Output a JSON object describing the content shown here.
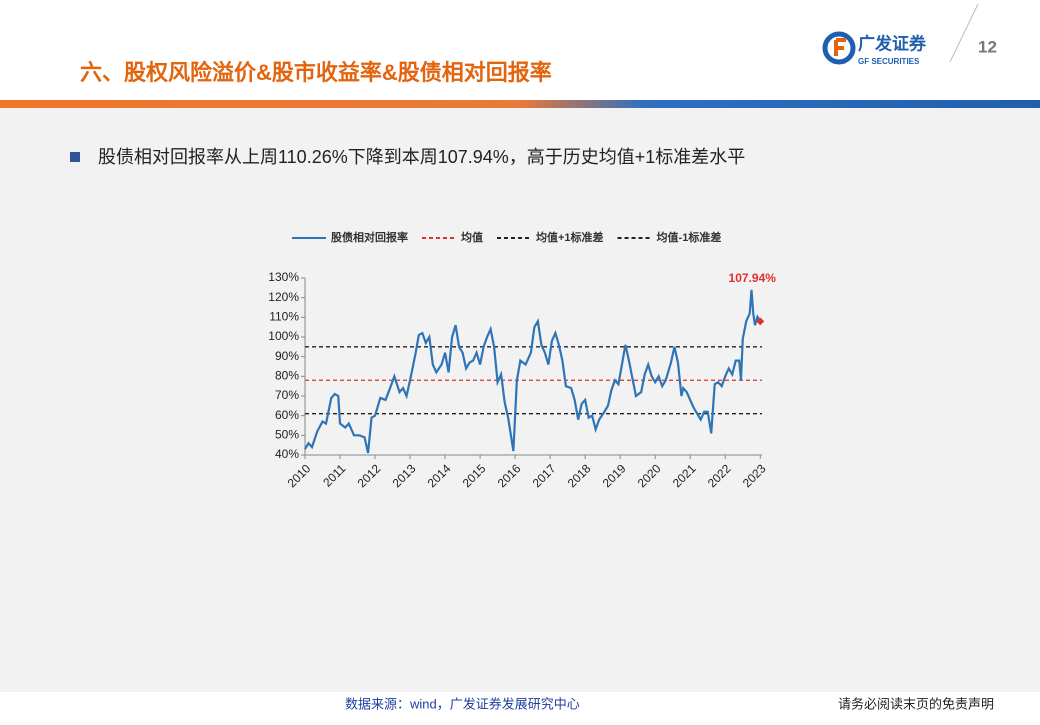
{
  "header": {
    "title": "六、股权风险溢价&股市收益率&股债相对回报率",
    "logo_cn": "广发证券",
    "logo_en": "GF SECURITIES",
    "page_number": "12"
  },
  "bullet": "股债相对回报率从上周110.26%下降到本周107.94%，高于历史均值+1标准差水平",
  "footer": {
    "source": "数据来源：wind，广发证券发展研究中心",
    "disclaimer": "请务必阅读末页的免责声明"
  },
  "chart_data": {
    "type": "line",
    "x": [
      2010.0,
      2010.1,
      2010.2,
      2010.35,
      2010.5,
      2010.6,
      2010.75,
      2010.85,
      2010.95,
      2011.0,
      2011.15,
      2011.25,
      2011.4,
      2011.55,
      2011.7,
      2011.8,
      2011.9,
      2012.0,
      2012.15,
      2012.3,
      2012.45,
      2012.55,
      2012.7,
      2012.8,
      2012.9,
      2013.0,
      2013.15,
      2013.25,
      2013.35,
      2013.45,
      2013.55,
      2013.65,
      2013.75,
      2013.9,
      2014.0,
      2014.1,
      2014.2,
      2014.3,
      2014.4,
      2014.5,
      2014.6,
      2014.7,
      2014.8,
      2014.9,
      2015.0,
      2015.1,
      2015.2,
      2015.3,
      2015.4,
      2015.5,
      2015.6,
      2015.7,
      2015.8,
      2015.95,
      2016.05,
      2016.15,
      2016.3,
      2016.45,
      2016.55,
      2016.65,
      2016.75,
      2016.85,
      2016.95,
      2017.05,
      2017.15,
      2017.25,
      2017.35,
      2017.45,
      2017.6,
      2017.7,
      2017.8,
      2017.9,
      2018.0,
      2018.1,
      2018.2,
      2018.3,
      2018.4,
      2018.55,
      2018.65,
      2018.75,
      2018.85,
      2018.95,
      2019.05,
      2019.15,
      2019.25,
      2019.35,
      2019.45,
      2019.6,
      2019.7,
      2019.8,
      2019.9,
      2020.0,
      2020.1,
      2020.2,
      2020.3,
      2020.45,
      2020.55,
      2020.65,
      2020.75,
      2020.8,
      2020.9,
      2021.0,
      2021.1,
      2021.2,
      2021.3,
      2021.4,
      2021.5,
      2021.6,
      2021.7,
      2021.8,
      2021.9,
      2022.0,
      2022.1,
      2022.2,
      2022.3,
      2022.4,
      2022.45,
      2022.5,
      2022.6,
      2022.7,
      2022.75,
      2022.8,
      2022.85,
      2022.92,
      2023.0
    ],
    "series": [
      {
        "name": "股债相对回报率",
        "color": "#2e75b6",
        "values": [
          43,
          46,
          44,
          52,
          57,
          56,
          69,
          71,
          70,
          56,
          54,
          56,
          50,
          50,
          49,
          41,
          59,
          60,
          69,
          68,
          75,
          80,
          72,
          74,
          70,
          78,
          91,
          101,
          102,
          97,
          100,
          86,
          82,
          86,
          92,
          82,
          100,
          106,
          95,
          92,
          84,
          87,
          88,
          92,
          86,
          95,
          100,
          104,
          95,
          77,
          81,
          67,
          59,
          42,
          78,
          88,
          86,
          92,
          105,
          108,
          96,
          92,
          86,
          98,
          102,
          96,
          88,
          75,
          74,
          68,
          58,
          66,
          68,
          59,
          60,
          53,
          58,
          62,
          65,
          73,
          78,
          76,
          86,
          96,
          88,
          79,
          70,
          72,
          81,
          86,
          80,
          77,
          80,
          75,
          78,
          87,
          95,
          87,
          70,
          74,
          72,
          68,
          64,
          61,
          58,
          62,
          62,
          51,
          76,
          77,
          75,
          80,
          84,
          81,
          88,
          88,
          78,
          99,
          108,
          112,
          124,
          112,
          106,
          110.26,
          107.94
        ]
      }
    ],
    "reference_lines": [
      {
        "name": "均值",
        "color": "#e03030",
        "value": 78
      },
      {
        "name": "均值+1标准差",
        "color": "#222222",
        "value": 95
      },
      {
        "name": "均值-1标准差",
        "color": "#222222",
        "value": 61
      }
    ],
    "annotation": "107.94%",
    "annotation_color": "#e03030",
    "xlim": [
      2010,
      2023.05
    ],
    "xticks": [
      2010,
      2011,
      2012,
      2013,
      2014,
      2015,
      2016,
      2017,
      2018,
      2019,
      2020,
      2021,
      2022,
      2023
    ],
    "ylim": [
      40,
      130
    ],
    "yticks": [
      {
        "value": 40,
        "label": "40%"
      },
      {
        "value": 50,
        "label": "50%"
      },
      {
        "value": 60,
        "label": "60%"
      },
      {
        "value": 70,
        "label": "70%"
      },
      {
        "value": 80,
        "label": "80%"
      },
      {
        "value": 90,
        "label": "90%"
      },
      {
        "value": 100,
        "label": "100%"
      },
      {
        "value": 110,
        "label": "110%"
      },
      {
        "value": 120,
        "label": "120%"
      },
      {
        "value": 130,
        "label": "130%"
      }
    ]
  }
}
